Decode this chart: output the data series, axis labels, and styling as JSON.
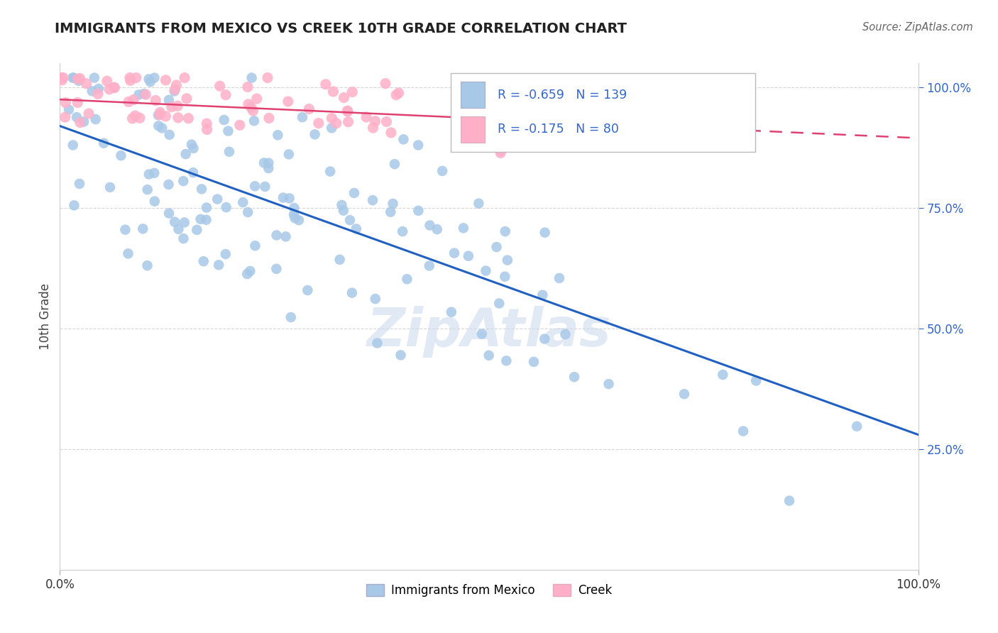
{
  "title": "IMMIGRANTS FROM MEXICO VS CREEK 10TH GRADE CORRELATION CHART",
  "source": "Source: ZipAtlas.com",
  "ylabel": "10th Grade",
  "legend_label1": "Immigrants from Mexico",
  "legend_label2": "Creek",
  "color_blue": "#a8c8e8",
  "color_pink": "#ffb0c8",
  "color_blue_line": "#2060c0",
  "color_pink_line": "#e04070",
  "watermark": "ZipAtlas",
  "blue_R": -0.659,
  "blue_N": 139,
  "pink_R": -0.175,
  "pink_N": 80,
  "blue_line_x1": 0.0,
  "blue_line_y1": 0.92,
  "blue_line_x2": 1.0,
  "blue_line_y2": 0.28,
  "pink_line_x1": 0.0,
  "pink_line_y1": 0.975,
  "pink_line_x2": 1.0,
  "pink_line_y2": 0.895,
  "ylim_min": 0.0,
  "ylim_max": 1.05,
  "xlim_min": 0.0,
  "xlim_max": 1.0
}
